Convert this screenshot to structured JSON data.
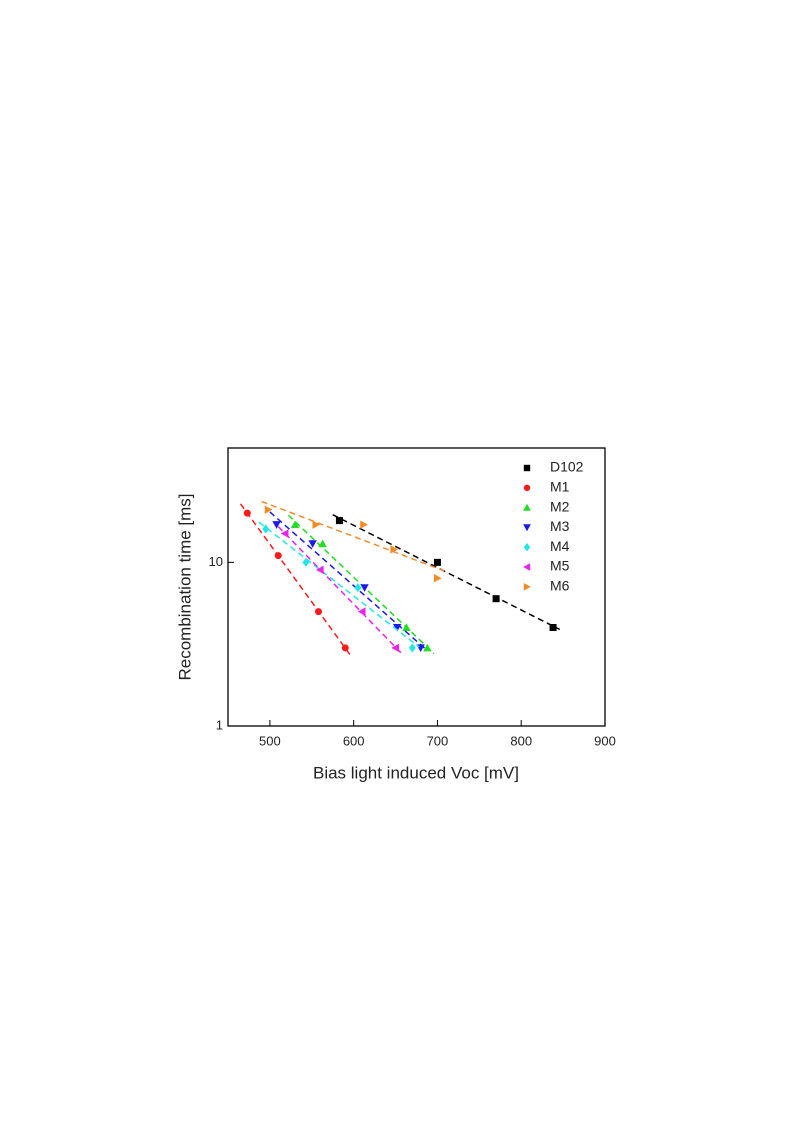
{
  "chart_data": {
    "type": "scatter",
    "x_label": "Bias light induced Voc [mV]",
    "y_label": "Recombination time [ms]",
    "xlim": [
      450,
      900
    ],
    "xticks": [
      500,
      600,
      700,
      800,
      900
    ],
    "ylim": [
      1,
      50
    ],
    "yticks": [
      1,
      10
    ],
    "y_scale": "log",
    "legend": "top-right",
    "fit_lines": true,
    "series": [
      {
        "name": "D102",
        "color": "#000000",
        "marker": "square",
        "x": [
          583,
          700,
          770,
          838
        ],
        "values": [
          18,
          10,
          6,
          4
        ]
      },
      {
        "name": "M1",
        "color": "#ff1a1a",
        "marker": "circle",
        "x": [
          473,
          510,
          558,
          590
        ],
        "values": [
          20,
          11,
          5,
          3
        ]
      },
      {
        "name": "M2",
        "color": "#22dd22",
        "marker": "triangle-up",
        "x": [
          530,
          563,
          663,
          688
        ],
        "values": [
          17,
          13,
          4,
          3
        ]
      },
      {
        "name": "M3",
        "color": "#1a1aee",
        "marker": "triangle-down",
        "x": [
          508,
          551,
          613,
          652,
          680
        ],
        "values": [
          17,
          13,
          7,
          4,
          3
        ]
      },
      {
        "name": "M4",
        "color": "#22e5e5",
        "marker": "diamond",
        "x": [
          495,
          543,
          605,
          670
        ],
        "values": [
          16,
          10,
          7,
          3
        ]
      },
      {
        "name": "M5",
        "color": "#ee22ee",
        "marker": "triangle-left",
        "x": [
          518,
          560,
          610,
          650
        ],
        "values": [
          15,
          9,
          5,
          3
        ]
      },
      {
        "name": "M6",
        "color": "#f28c28",
        "marker": "triangle-right",
        "x": [
          498,
          555,
          612,
          648,
          700
        ],
        "values": [
          21,
          17,
          17,
          12,
          8
        ]
      }
    ]
  }
}
